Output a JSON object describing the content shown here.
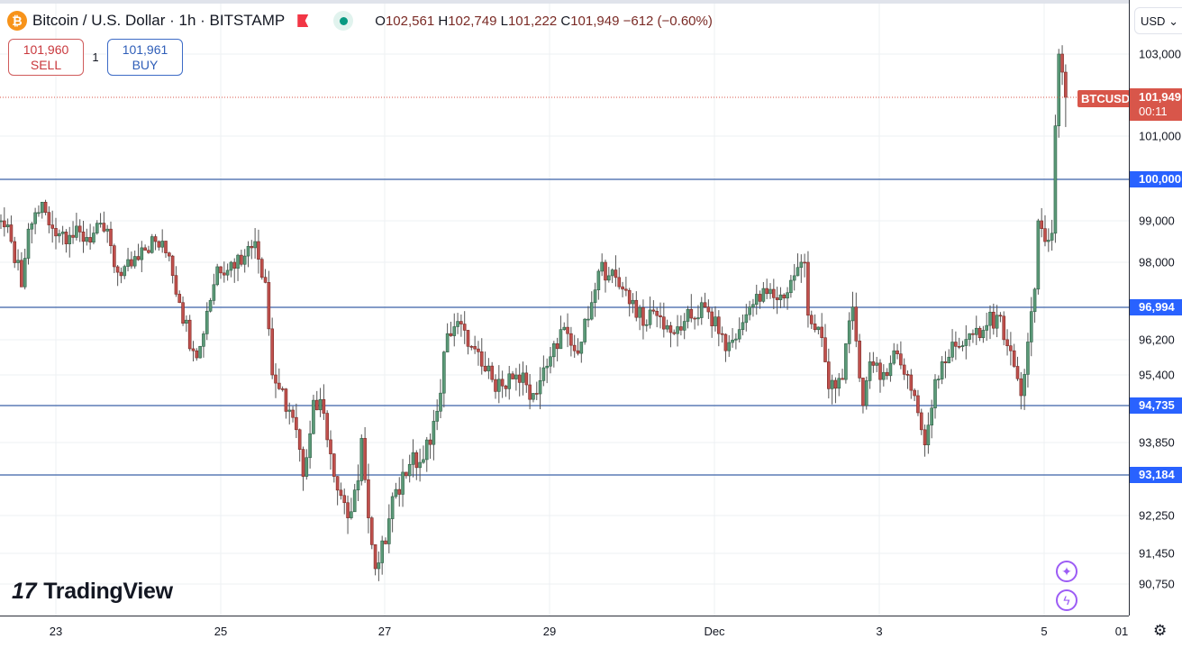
{
  "header": {
    "symbol_title": "Bitcoin / U.S. Dollar · 1h · BITSTAMP",
    "ohlc": {
      "o_label": "O",
      "o": "102,561",
      "h_label": "H",
      "h": "102,749",
      "l_label": "L",
      "l": "101,222",
      "c_label": "C",
      "c": "101,949",
      "change": "−612 (−0.60%)"
    },
    "coin_icon": "bitcoin-icon"
  },
  "trade": {
    "sell_price": "101,960",
    "sell_label": "SELL",
    "quantity": "1",
    "buy_price": "101,961",
    "buy_label": "BUY"
  },
  "price_axis": {
    "currency": "USD",
    "ticks": [
      "103,000",
      "101,000",
      "99,000",
      "98,000",
      "96,200",
      "95,400",
      "93,850",
      "92,250",
      "91,450",
      "90,750"
    ],
    "levels": [
      "100,000",
      "96,994",
      "94,735",
      "93,184"
    ],
    "current_price": "101,949",
    "countdown": "00:11",
    "symbol_tag": "BTCUSD"
  },
  "time_axis": {
    "labels": [
      "23",
      "25",
      "27",
      "29",
      "Dec",
      "3",
      "5",
      "01"
    ]
  },
  "branding": {
    "logo_text": "TradingView"
  },
  "colors": {
    "up": "#5b9a78",
    "down": "#c0504d",
    "level_line": "#2962ff",
    "current": "#d8564a"
  },
  "chart_data": {
    "type": "candlestick",
    "interval": "1h",
    "exchange": "BITSTAMP",
    "horizontal_levels": [
      100000,
      96994,
      94735,
      93184
    ],
    "last": {
      "open": 102561,
      "high": 102749,
      "low": 101222,
      "close": 101949
    },
    "y_ticks": [
      103000,
      101000,
      99000,
      98000,
      96200,
      95400,
      93850,
      92250,
      91450,
      90750
    ],
    "x_ticks": [
      "23",
      "25",
      "27",
      "29",
      "Dec",
      "3",
      "5",
      "01"
    ],
    "grid": true,
    "approx_close_path": [
      [
        "11-22 08:00",
        99000
      ],
      [
        "11-22 11:00",
        98500
      ],
      [
        "11-22 14:00",
        97450
      ],
      [
        "11-22 16:00",
        98800
      ],
      [
        "11-22 20:00",
        99450
      ],
      [
        "11-22 22:00",
        98900
      ],
      [
        "11-23 04:00",
        98650
      ],
      [
        "11-23 09:00",
        98600
      ],
      [
        "11-23 15:00",
        98800
      ],
      [
        "11-23 17:00",
        97900
      ],
      [
        "11-23 19:00",
        97700
      ],
      [
        "11-24 01:00",
        98350
      ],
      [
        "11-24 05:00",
        98500
      ],
      [
        "11-24 09:00",
        98150
      ],
      [
        "11-24 12:00",
        97100
      ],
      [
        "11-24 16:00",
        95950
      ],
      [
        "11-24 18:00",
        96050
      ],
      [
        "11-24 20:00",
        96900
      ],
      [
        "11-24 23:00",
        97900
      ],
      [
        "11-25 03:00",
        98000
      ],
      [
        "11-25 07:00",
        98150
      ],
      [
        "11-25 10:00",
        98500
      ],
      [
        "11-25 13:00",
        97550
      ],
      [
        "11-25 15:00",
        95400
      ],
      [
        "11-25 17:00",
        95100
      ],
      [
        "11-25 21:00",
        94450
      ],
      [
        "11-26 00:00",
        93150
      ],
      [
        "11-26 03:00",
        94850
      ],
      [
        "11-26 06:00",
        94550
      ],
      [
        "11-26 09:00",
        93150
      ],
      [
        "11-26 13:00",
        92200
      ],
      [
        "11-26 16:00",
        93050
      ],
      [
        "11-26 17:00",
        93950
      ],
      [
        "11-26 19:00",
        92200
      ],
      [
        "11-26 21:00",
        91100
      ],
      [
        "11-27 00:00",
        91650
      ],
      [
        "11-27 03:00",
        92850
      ],
      [
        "11-27 07:00",
        93400
      ],
      [
        "11-27 11:00",
        93500
      ],
      [
        "11-27 15:00",
        94600
      ],
      [
        "11-27 18:00",
        96350
      ],
      [
        "11-27 21:00",
        96650
      ],
      [
        "11-28 00:00",
        96050
      ],
      [
        "11-28 04:00",
        95600
      ],
      [
        "11-28 07:00",
        95300
      ],
      [
        "11-28 11:00",
        95100
      ],
      [
        "11-28 14:00",
        95400
      ],
      [
        "11-28 19:00",
        95000
      ],
      [
        "11-28 23:00",
        95600
      ],
      [
        "11-29 03:00",
        96450
      ],
      [
        "11-29 07:00",
        95950
      ],
      [
        "11-29 09:00",
        96150
      ],
      [
        "11-29 12:00",
        97100
      ],
      [
        "11-29 15:00",
        98000
      ],
      [
        "11-29 17:00",
        97700
      ],
      [
        "11-29 21:00",
        97400
      ],
      [
        "11-30 00:00",
        97150
      ],
      [
        "11-30 03:00",
        96550
      ],
      [
        "11-30 06:00",
        96900
      ],
      [
        "11-30 12:00",
        96350
      ],
      [
        "11-30 15:00",
        96650
      ],
      [
        "11-30 21:00",
        97000
      ],
      [
        "12-01 01:00",
        96350
      ],
      [
        "12-01 03:00",
        95950
      ],
      [
        "12-01 07:00",
        96450
      ],
      [
        "12-01 10:00",
        97000
      ],
      [
        "12-01 15:00",
        97300
      ],
      [
        "12-01 20:00",
        97200
      ],
      [
        "12-01 23:00",
        97700
      ],
      [
        "12-02 02:00",
        98000
      ],
      [
        "12-02 03:00",
        96800
      ],
      [
        "12-02 07:00",
        96250
      ],
      [
        "12-02 09:00",
        95100
      ],
      [
        "12-02 13:00",
        95300
      ],
      [
        "12-02 16:00",
        97000
      ],
      [
        "12-02 19:00",
        94735
      ],
      [
        "12-02 21:00",
        95700
      ],
      [
        "12-03 00:00",
        95300
      ],
      [
        "12-03 04:00",
        95950
      ],
      [
        "12-03 08:00",
        95400
      ],
      [
        "12-03 10:00",
        94950
      ],
      [
        "12-03 13:00",
        93800
      ],
      [
        "12-03 16:00",
        95300
      ],
      [
        "12-03 18:00",
        95700
      ],
      [
        "12-03 22:00",
        96050
      ],
      [
        "12-04 02:00",
        96350
      ],
      [
        "12-04 05:00",
        96250
      ],
      [
        "12-04 07:00",
        96550
      ],
      [
        "12-04 10:00",
        96800
      ],
      [
        "12-04 14:00",
        95950
      ],
      [
        "12-04 17:00",
        94950
      ],
      [
        "12-04 19:00",
        96150
      ],
      [
        "12-04 21:00",
        97400
      ],
      [
        "12-04 22:00",
        99000
      ],
      [
        "12-05 00:00",
        98500
      ],
      [
        "12-05 02:00",
        98700
      ],
      [
        "12-05 03:00",
        101250
      ],
      [
        "12-05 04:00",
        103000
      ],
      [
        "12-05 05:00",
        102561
      ],
      [
        "12-05 06:00",
        101949
      ]
    ]
  }
}
